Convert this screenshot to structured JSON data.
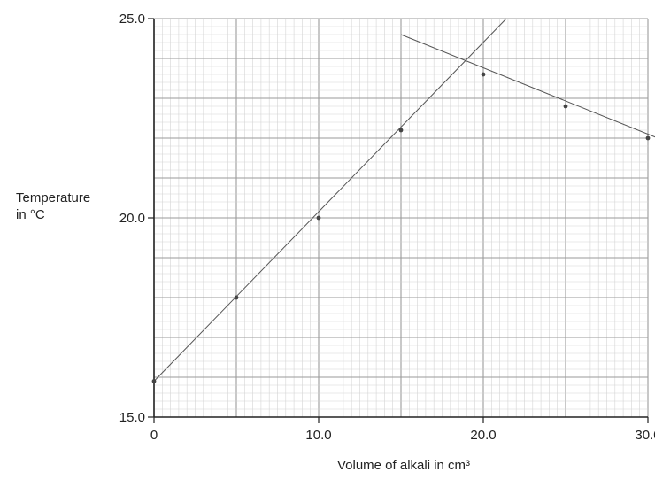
{
  "chart_data": {
    "type": "scatter",
    "title": "",
    "xlabel": "Volume of alkali in cm³",
    "ylabel_lines": [
      "Temperature",
      "in °C"
    ],
    "xlim": [
      0,
      30
    ],
    "ylim": [
      15,
      25
    ],
    "x_ticks": [
      {
        "value": 0,
        "label": "0"
      },
      {
        "value": 10,
        "label": "10.0"
      },
      {
        "value": 20,
        "label": "20.0"
      },
      {
        "value": 30,
        "label": "30.0"
      }
    ],
    "y_ticks": [
      {
        "value": 15,
        "label": "15.0"
      },
      {
        "value": 20,
        "label": "20.0"
      },
      {
        "value": 25,
        "label": "25.0"
      }
    ],
    "grid": true,
    "points": [
      {
        "x": 0,
        "y": 15.9
      },
      {
        "x": 5,
        "y": 18.0
      },
      {
        "x": 10,
        "y": 20.0
      },
      {
        "x": 15,
        "y": 22.2
      },
      {
        "x": 20,
        "y": 23.6
      },
      {
        "x": 25,
        "y": 22.8
      },
      {
        "x": 30,
        "y": 22.0
      }
    ],
    "lines": [
      {
        "x1": 0,
        "y1": 15.9,
        "x2": 21.4,
        "y2": 25.0
      },
      {
        "x1": 15,
        "y1": 24.6,
        "x2": 31.2,
        "y2": 21.9
      }
    ],
    "colors": {
      "grid_minor": "#d4d4d4",
      "grid_major": "#9a9a9a",
      "axis": "#222222",
      "point": "#444444",
      "line": "#555555"
    }
  }
}
